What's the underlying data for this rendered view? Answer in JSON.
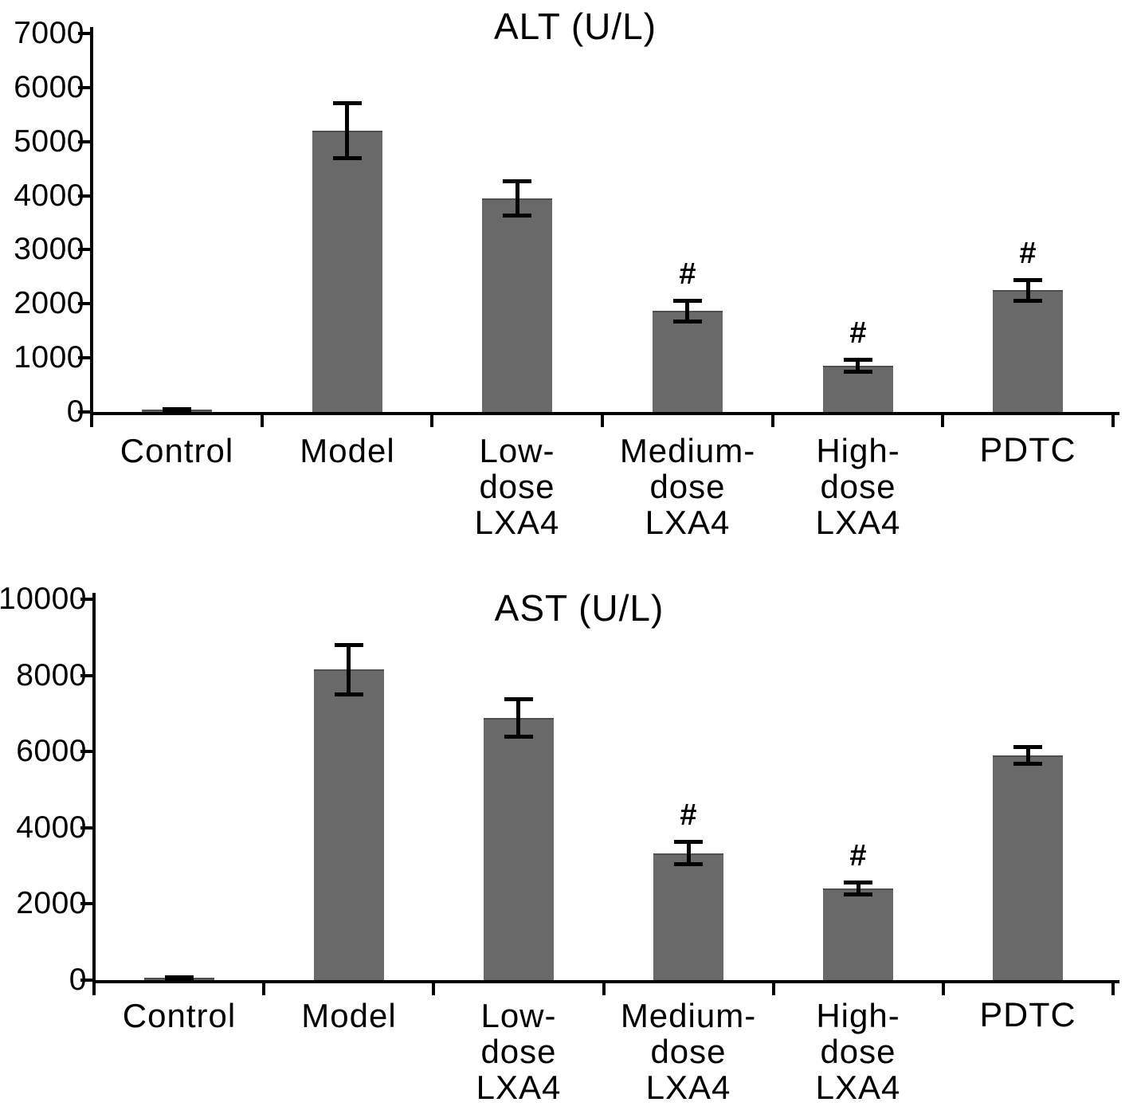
{
  "figure": {
    "background": "#ffffff",
    "axis_color": "#000000",
    "text_color": "#000000"
  },
  "chart_data": [
    {
      "type": "bar",
      "title": "ALT (U/L)",
      "xlabel": "",
      "ylabel": "",
      "categories": [
        "Control",
        "Model",
        "Low-dose LXA4",
        "Medium-dose LXA4",
        "High-dose LXA4",
        "PDTC"
      ],
      "category_lines": [
        [
          "Control"
        ],
        [
          "Model"
        ],
        [
          "Low-",
          "dose",
          "LXA4"
        ],
        [
          "Medium-",
          "dose",
          "LXA4"
        ],
        [
          "High-",
          "dose",
          "LXA4"
        ],
        [
          "PDTC"
        ]
      ],
      "values": [
        40,
        5200,
        3950,
        1870,
        850,
        2250
      ],
      "errors": [
        25,
        520,
        330,
        200,
        120,
        200
      ],
      "sig_labels": [
        "",
        "",
        "",
        "#",
        "#",
        "#"
      ],
      "bar_color": "#696969",
      "ylim": [
        0,
        7000
      ],
      "yticks": [
        0,
        1000,
        2000,
        3000,
        4000,
        5000,
        6000,
        7000
      ],
      "grid": false,
      "legend": "none",
      "error_bars": true
    },
    {
      "type": "bar",
      "title": "AST (U/L)",
      "xlabel": "",
      "ylabel": "",
      "categories": [
        "Control",
        "Model",
        "Low-dose LXA4",
        "Medium-dose LXA4",
        "High-dose LXA4",
        "PDTC"
      ],
      "category_lines": [
        [
          "Control"
        ],
        [
          "Model"
        ],
        [
          "Low-",
          "dose",
          "LXA4"
        ],
        [
          "Medium-",
          "dose",
          "LXA4"
        ],
        [
          "High-",
          "dose",
          "LXA4"
        ],
        [
          "PDTC"
        ]
      ],
      "values": [
        60,
        8150,
        6880,
        3330,
        2400,
        5900
      ],
      "errors": [
        30,
        650,
        500,
        300,
        170,
        230
      ],
      "sig_labels": [
        "",
        "",
        "",
        "#",
        "#",
        ""
      ],
      "bar_color": "#696969",
      "ylim": [
        0,
        10000
      ],
      "yticks": [
        0,
        2000,
        4000,
        6000,
        8000,
        10000
      ],
      "grid": false,
      "legend": "none",
      "error_bars": true
    }
  ]
}
